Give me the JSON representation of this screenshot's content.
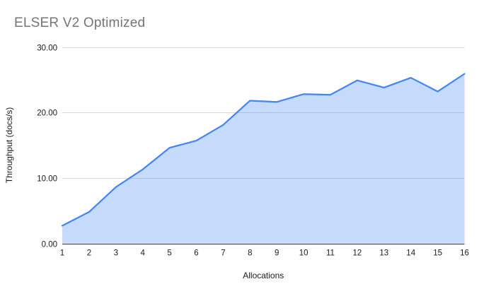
{
  "chart_data": {
    "type": "area",
    "title": "ELSER V2 Optimized",
    "xlabel": "Allocations",
    "ylabel": "Throughput (docs/s)",
    "categories": [
      "1",
      "2",
      "3",
      "4",
      "5",
      "6",
      "7",
      "8",
      "9",
      "10",
      "11",
      "12",
      "13",
      "14",
      "15",
      "16"
    ],
    "series": [
      {
        "name": "Throughput (docs/s)",
        "values": [
          2.7,
          4.8,
          8.6,
          11.3,
          14.6,
          15.7,
          18.1,
          21.8,
          21.6,
          22.8,
          22.7,
          24.9,
          23.8,
          25.3,
          23.2,
          25.9
        ]
      }
    ],
    "ylim": [
      0,
      30
    ],
    "y_ticks": [
      {
        "value": 0,
        "label": "0.00"
      },
      {
        "value": 10,
        "label": "10.00"
      },
      {
        "value": 20,
        "label": "20.00"
      },
      {
        "value": 30,
        "label": "30.00"
      }
    ],
    "grid": true,
    "legend_position": "none",
    "colors": {
      "line": "#4285f4",
      "fill": "#4285f4",
      "fill_opacity": 0.3,
      "title_text": "#757575",
      "axis_text": "#1a1a1a",
      "gridline": "#dadada",
      "baseline": "#333333",
      "background": "#ffffff"
    }
  }
}
